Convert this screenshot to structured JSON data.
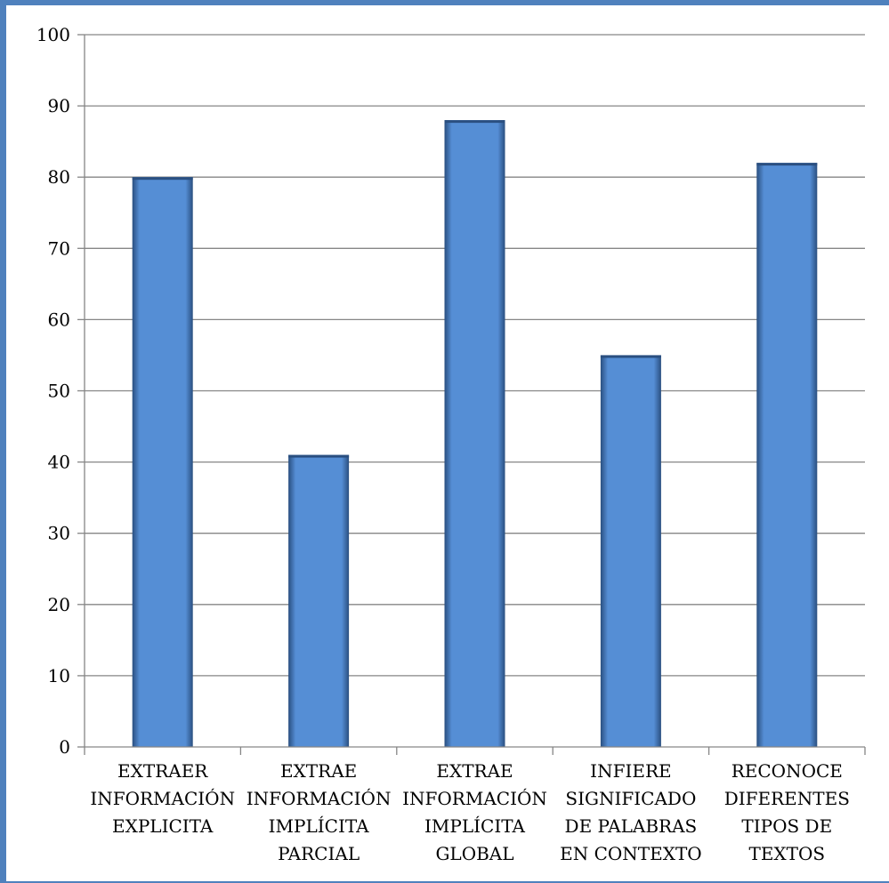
{
  "chart_data": {
    "type": "bar",
    "title": "",
    "xlabel": "",
    "ylabel": "",
    "categories": [
      [
        "EXTRAER",
        "INFORMACIÓN",
        "EXPLICITA"
      ],
      [
        "EXTRAE",
        "INFORMACIÓN",
        "IMPLÍCITA",
        "PARCIAL"
      ],
      [
        "EXTRAE",
        "INFORMACIÓN",
        "IMPLÍCITA",
        "GLOBAL"
      ],
      [
        "INFIERE",
        "SIGNIFICADO",
        "DE PALABRAS",
        "EN CONTEXTO"
      ],
      [
        "RECONOCE",
        "DIFERENTES",
        "TIPOS DE",
        "TEXTOS"
      ]
    ],
    "values": [
      80,
      41,
      88,
      55,
      82
    ],
    "ylim": [
      0,
      100
    ],
    "yticks": [
      "0",
      "10",
      "20",
      "30",
      "40",
      "50",
      "60",
      "70",
      "80",
      "90",
      "100"
    ],
    "grid": true,
    "legend": "none",
    "colors": {
      "bar": "#558ed5",
      "bar_dark": "#2a4f80",
      "grid": "#868686",
      "frame": "#4f81bd"
    }
  }
}
